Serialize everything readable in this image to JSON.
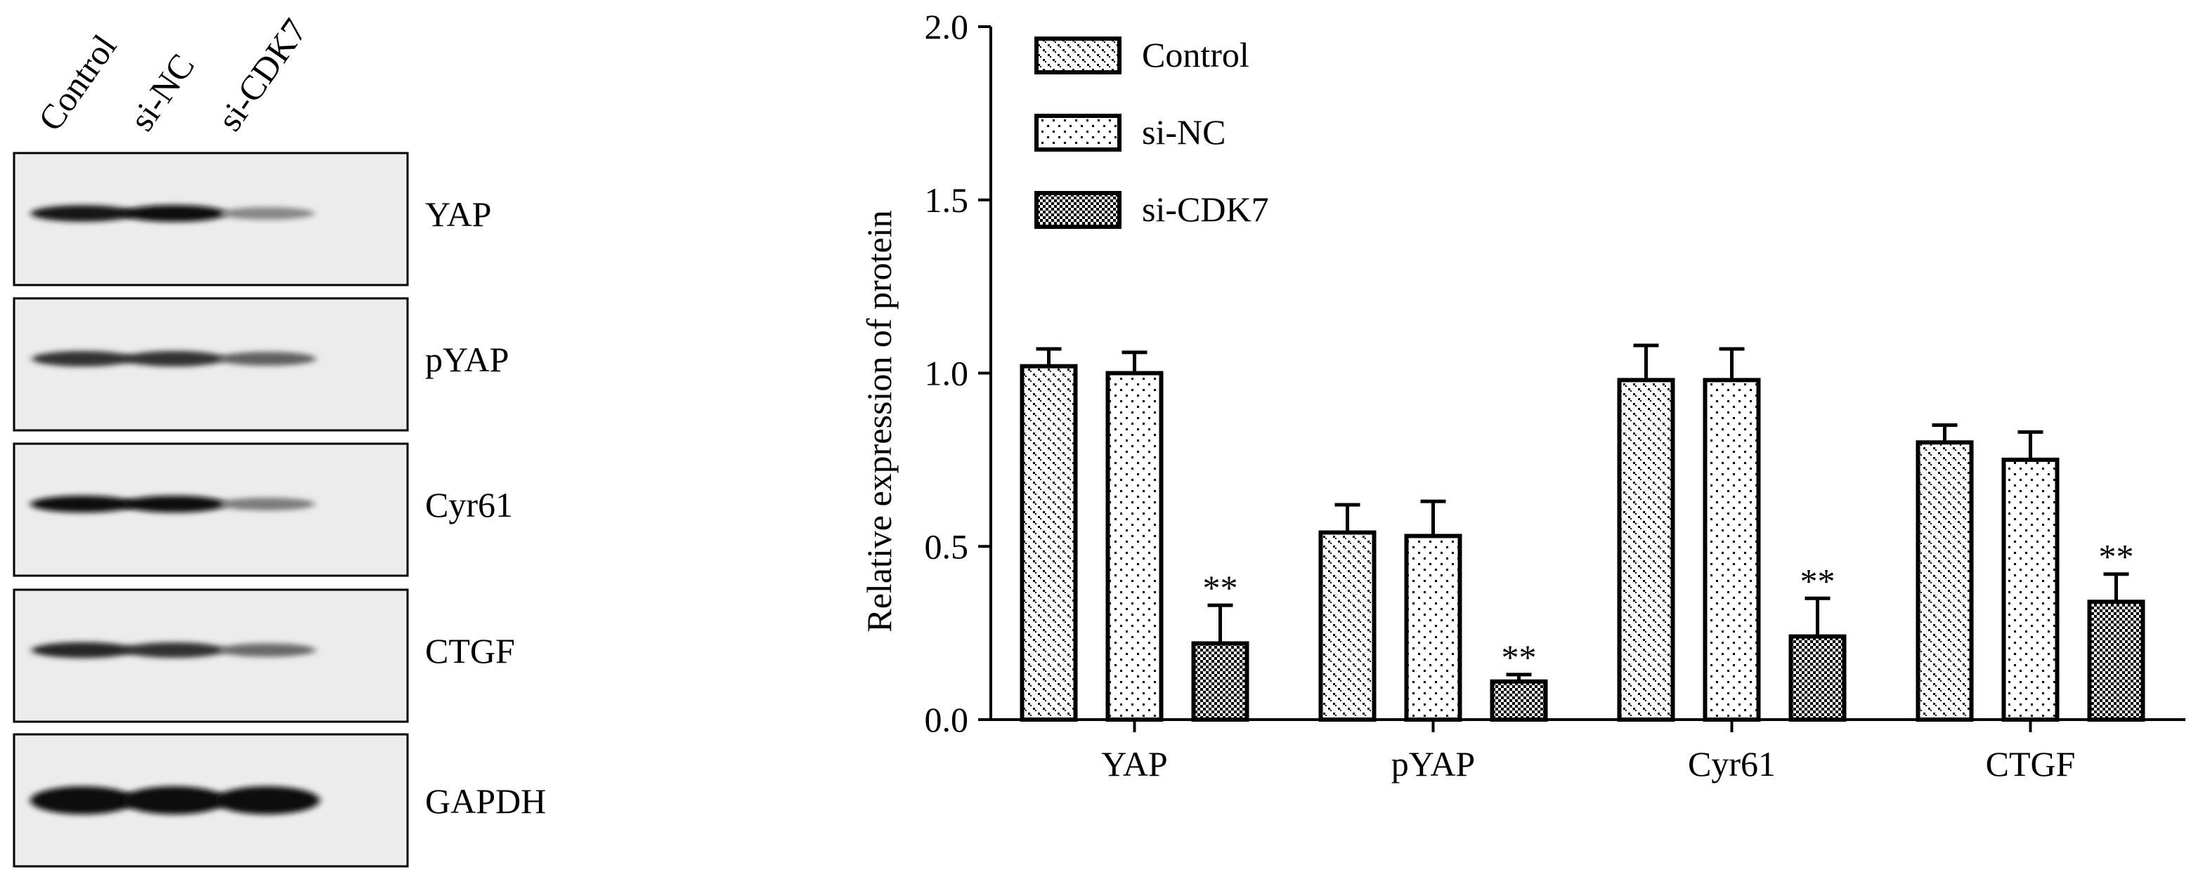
{
  "blot": {
    "lanes": [
      "Control",
      "si-NC",
      "si-CDK7"
    ],
    "rows": [
      {
        "label": "YAP",
        "bands": [
          0.95,
          1.0,
          0.35
        ]
      },
      {
        "label": "pYAP",
        "bands": [
          0.8,
          0.8,
          0.55
        ]
      },
      {
        "label": "Cyr61",
        "bands": [
          1.0,
          1.0,
          0.4
        ]
      },
      {
        "label": "CTGF",
        "bands": [
          0.85,
          0.8,
          0.5
        ]
      },
      {
        "label": "GAPDH",
        "bands": [
          1.0,
          1.0,
          1.0
        ]
      }
    ]
  },
  "chart_data": {
    "type": "bar",
    "title": "",
    "xlabel": "",
    "ylabel": "Relative expression of protein",
    "ylim": [
      0,
      2.0
    ],
    "yticks": [
      "0.0",
      "0.5",
      "1.0",
      "1.5",
      "2.0"
    ],
    "categories": [
      "YAP",
      "pYAP",
      "Cyr61",
      "CTGF"
    ],
    "series": [
      {
        "name": "Control",
        "pattern": "crosshatch-dots",
        "values": [
          1.02,
          0.54,
          0.98,
          0.8
        ],
        "errors": [
          0.05,
          0.08,
          0.1,
          0.05
        ]
      },
      {
        "name": "si-NC",
        "pattern": "sparse-dots",
        "values": [
          1.0,
          0.53,
          0.98,
          0.75
        ],
        "errors": [
          0.06,
          0.1,
          0.09,
          0.08
        ]
      },
      {
        "name": "si-CDK7",
        "pattern": "checker",
        "values": [
          0.22,
          0.11,
          0.24,
          0.34
        ],
        "errors": [
          0.11,
          0.02,
          0.11,
          0.08
        ]
      }
    ],
    "annotations": [
      "**",
      "**",
      "**",
      "**"
    ],
    "legend_position": "top-left",
    "grid": false
  }
}
